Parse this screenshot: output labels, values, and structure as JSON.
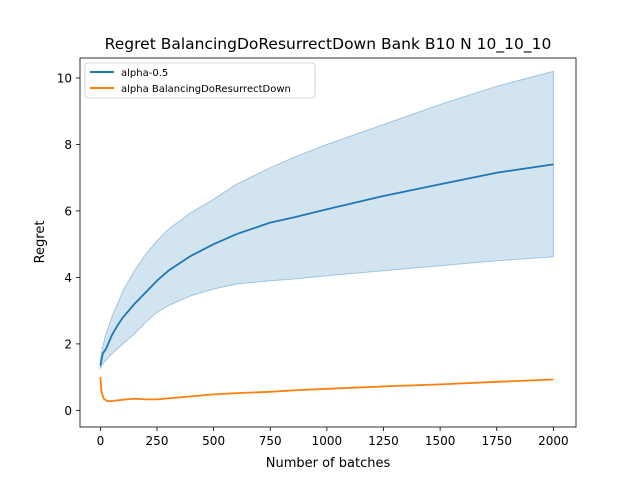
{
  "chart_data": {
    "type": "line",
    "title": "Regret BalancingDoResurrectDown Bank B10 N 10_10_10",
    "xlabel": "Number of batches",
    "ylabel": "Regret",
    "xlim": [
      -90,
      2100
    ],
    "ylim": [
      -0.5,
      10.6
    ],
    "xticks": [
      0,
      250,
      500,
      750,
      1000,
      1250,
      1500,
      1750,
      2000
    ],
    "yticks": [
      0,
      2,
      4,
      6,
      8,
      10
    ],
    "grid": false,
    "legend_position": "top-left",
    "series": [
      {
        "name": "alpha-0.5",
        "color": "#1f77b4",
        "band_color": "#1f77b4",
        "band_opacity": 0.2,
        "x": [
          0,
          10,
          25,
          50,
          75,
          100,
          150,
          200,
          250,
          300,
          400,
          500,
          600,
          750,
          850,
          1000,
          1250,
          1500,
          1750,
          2000
        ],
        "y": [
          1.35,
          1.7,
          1.85,
          2.25,
          2.55,
          2.8,
          3.2,
          3.55,
          3.9,
          4.2,
          4.65,
          5.0,
          5.3,
          5.65,
          5.8,
          6.05,
          6.45,
          6.8,
          7.15,
          7.4
        ],
        "lower": [
          1.25,
          1.4,
          1.5,
          1.7,
          1.85,
          2.0,
          2.3,
          2.65,
          2.95,
          3.15,
          3.45,
          3.65,
          3.8,
          3.9,
          3.95,
          4.05,
          4.2,
          4.35,
          4.5,
          4.62
        ],
        "upper": [
          1.5,
          1.9,
          2.3,
          2.8,
          3.2,
          3.6,
          4.2,
          4.7,
          5.1,
          5.45,
          5.95,
          6.35,
          6.8,
          7.3,
          7.6,
          8.0,
          8.6,
          9.2,
          9.75,
          10.2
        ]
      },
      {
        "name": "alpha BalancingDoResurrectDown",
        "color": "#ff7f0e",
        "x": [
          0,
          5,
          15,
          30,
          50,
          75,
          100,
          150,
          200,
          250,
          300,
          400,
          500,
          600,
          750,
          850,
          1000,
          1250,
          1500,
          1750,
          2000
        ],
        "y": [
          1.0,
          0.55,
          0.35,
          0.28,
          0.28,
          0.3,
          0.32,
          0.35,
          0.33,
          0.33,
          0.36,
          0.42,
          0.48,
          0.52,
          0.56,
          0.6,
          0.65,
          0.72,
          0.78,
          0.86,
          0.93
        ]
      }
    ]
  }
}
